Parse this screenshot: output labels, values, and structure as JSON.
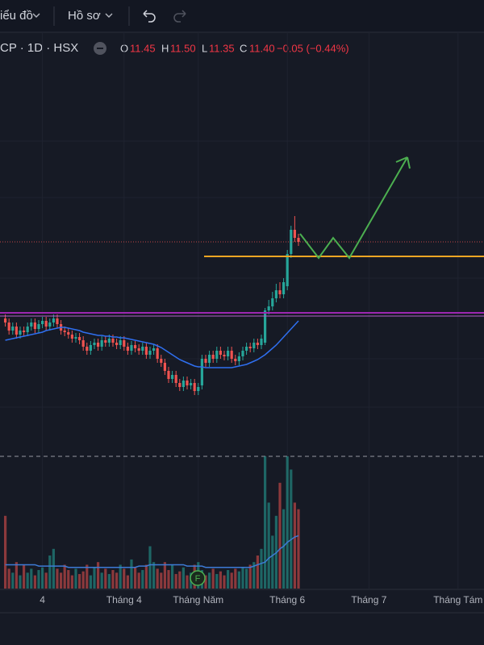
{
  "toolbar": {
    "chart_menu": "iểu đồ",
    "profile_menu": "Hồ sơ"
  },
  "legend": {
    "symbol": "CP · 1D · HSX",
    "o_label": "O",
    "o": "11.45",
    "h_label": "H",
    "h": "11.50",
    "l_label": "L",
    "l": "11.35",
    "c_label": "C",
    "c": "11.40",
    "change": "−0.05 (−0.44%)"
  },
  "event_marker": "F",
  "chart_data": {
    "type": "candlestick",
    "up_color": "#26a69a",
    "down_color": "#ef5350",
    "ma_color": "#2f6ff0",
    "volume_ma_color": "#3d7bd6",
    "xlim": [
      -1.43,
      129.0
    ],
    "ylim": [
      8.8,
      14.0
    ],
    "volume_ylim": [
      0,
      10
    ],
    "xticks": [
      {
        "value": 10,
        "label": "4"
      },
      {
        "value": 32,
        "label": "Tháng 4"
      },
      {
        "value": 52,
        "label": "Tháng Năm"
      },
      {
        "value": 76,
        "label": "Tháng 6"
      },
      {
        "value": 98,
        "label": "Tháng 7"
      },
      {
        "value": 122,
        "label": "Tháng Tám"
      }
    ],
    "x": [
      0,
      1,
      2,
      3,
      4,
      5,
      6,
      7,
      8,
      9,
      10,
      11,
      12,
      13,
      14,
      15,
      16,
      17,
      18,
      19,
      20,
      21,
      22,
      23,
      24,
      25,
      26,
      27,
      28,
      29,
      30,
      31,
      32,
      33,
      34,
      35,
      36,
      37,
      38,
      39,
      40,
      41,
      42,
      43,
      44,
      45,
      46,
      47,
      48,
      49,
      50,
      51,
      52,
      53,
      54,
      55,
      56,
      57,
      58,
      59,
      60,
      61,
      62,
      63,
      64,
      65,
      66,
      67,
      68,
      69,
      70,
      71,
      72,
      73,
      74,
      75,
      76,
      77,
      78,
      79
    ],
    "open": [
      10.45,
      10.4,
      10.3,
      10.35,
      10.25,
      10.3,
      10.28,
      10.35,
      10.4,
      10.32,
      10.38,
      10.42,
      10.35,
      10.4,
      10.45,
      10.38,
      10.3,
      10.28,
      10.25,
      10.2,
      10.22,
      10.18,
      10.1,
      10.05,
      10.12,
      10.15,
      10.1,
      10.18,
      10.15,
      10.2,
      10.15,
      10.12,
      10.18,
      10.1,
      10.05,
      10.12,
      10.08,
      10.05,
      10.1,
      10.0,
      10.05,
      10.08,
      9.95,
      9.9,
      9.8,
      9.7,
      9.75,
      9.65,
      9.6,
      9.68,
      9.62,
      9.65,
      9.55,
      9.62,
      9.95,
      9.9,
      10.0,
      9.95,
      10.05,
      10.0,
      9.98,
      10.05,
      9.95,
      9.92,
      9.98,
      10.05,
      10.1,
      10.08,
      10.15,
      10.12,
      10.15,
      10.55,
      10.6,
      10.7,
      10.8,
      10.75,
      10.85,
      11.25,
      11.55,
      11.45
    ],
    "high": [
      10.5,
      10.45,
      10.4,
      10.4,
      10.35,
      10.35,
      10.4,
      10.45,
      10.45,
      10.43,
      10.47,
      10.47,
      10.45,
      10.5,
      10.5,
      10.43,
      10.35,
      10.33,
      10.3,
      10.27,
      10.27,
      10.23,
      10.15,
      10.17,
      10.2,
      10.2,
      10.23,
      10.23,
      10.25,
      10.25,
      10.2,
      10.23,
      10.23,
      10.15,
      10.17,
      10.17,
      10.13,
      10.15,
      10.15,
      10.1,
      10.13,
      10.13,
      10.0,
      9.95,
      9.85,
      9.8,
      9.8,
      9.7,
      9.73,
      9.73,
      9.7,
      9.7,
      9.65,
      10.0,
      10.0,
      10.05,
      10.05,
      10.1,
      10.1,
      10.05,
      10.1,
      10.1,
      10.0,
      10.03,
      10.1,
      10.15,
      10.15,
      10.2,
      10.2,
      10.25,
      10.58,
      10.68,
      10.78,
      10.88,
      10.9,
      10.95,
      11.3,
      11.6,
      11.72,
      11.5
    ],
    "low": [
      10.35,
      10.25,
      10.25,
      10.2,
      10.2,
      10.23,
      10.23,
      10.3,
      10.27,
      10.27,
      10.33,
      10.3,
      10.3,
      10.35,
      10.33,
      10.25,
      10.23,
      10.2,
      10.15,
      10.15,
      10.13,
      10.05,
      10.0,
      10.0,
      10.07,
      10.05,
      10.05,
      10.1,
      10.1,
      10.1,
      10.07,
      10.07,
      10.05,
      10.0,
      10.0,
      10.03,
      10.0,
      10.0,
      9.95,
      9.95,
      10.0,
      9.9,
      9.85,
      9.75,
      9.65,
      9.65,
      9.6,
      9.55,
      9.55,
      9.57,
      9.57,
      9.5,
      9.5,
      9.57,
      9.85,
      9.85,
      9.9,
      9.9,
      9.95,
      9.93,
      9.93,
      9.9,
      9.87,
      9.87,
      9.93,
      10.0,
      10.03,
      10.03,
      10.07,
      10.07,
      10.12,
      10.5,
      10.55,
      10.65,
      10.7,
      10.7,
      10.8,
      11.2,
      11.4,
      11.35
    ],
    "close": [
      10.4,
      10.3,
      10.35,
      10.25,
      10.3,
      10.28,
      10.35,
      10.4,
      10.32,
      10.38,
      10.42,
      10.35,
      10.4,
      10.45,
      10.38,
      10.3,
      10.28,
      10.25,
      10.2,
      10.22,
      10.18,
      10.1,
      10.05,
      10.12,
      10.15,
      10.1,
      10.18,
      10.15,
      10.2,
      10.15,
      10.12,
      10.18,
      10.1,
      10.05,
      10.12,
      10.08,
      10.05,
      10.1,
      10.0,
      10.05,
      10.08,
      9.95,
      9.9,
      9.8,
      9.7,
      9.75,
      9.65,
      9.6,
      9.68,
      9.62,
      9.65,
      9.55,
      9.6,
      9.95,
      9.9,
      10.0,
      9.95,
      10.05,
      10.0,
      9.98,
      10.05,
      9.95,
      9.92,
      9.98,
      10.05,
      10.1,
      10.08,
      10.15,
      10.12,
      10.2,
      10.55,
      10.6,
      10.7,
      10.8,
      10.75,
      10.9,
      11.25,
      11.55,
      11.45,
      11.4
    ],
    "ma": [
      10.18,
      10.19,
      10.2,
      10.21,
      10.22,
      10.23,
      10.24,
      10.25,
      10.26,
      10.27,
      10.28,
      10.3,
      10.31,
      10.32,
      10.33,
      10.34,
      10.34,
      10.33,
      10.32,
      10.31,
      10.3,
      10.28,
      10.27,
      10.26,
      10.25,
      10.24,
      10.24,
      10.23,
      10.23,
      10.22,
      10.22,
      10.21,
      10.21,
      10.2,
      10.19,
      10.18,
      10.17,
      10.16,
      10.15,
      10.14,
      10.13,
      10.11,
      10.09,
      10.06,
      10.03,
      10.0,
      9.97,
      9.94,
      9.92,
      9.9,
      9.88,
      9.86,
      9.85,
      9.85,
      9.84,
      9.84,
      9.84,
      9.84,
      9.84,
      9.84,
      9.84,
      9.84,
      9.85,
      9.86,
      9.87,
      9.88,
      9.9,
      9.92,
      9.94,
      9.97,
      10.0,
      10.04,
      10.08,
      10.12,
      10.17,
      10.22,
      10.27,
      10.32,
      10.37,
      10.42
    ],
    "volume": [
      5.5,
      1.5,
      1.2,
      2.0,
      1.0,
      1.8,
      1.2,
      1.5,
      1.0,
      1.4,
      1.6,
      1.2,
      2.5,
      3.0,
      1.5,
      1.2,
      1.8,
      1.4,
      1.0,
      1.5,
      1.1,
      1.3,
      1.8,
      1.0,
      1.6,
      2.0,
      1.2,
      1.5,
      1.1,
      1.4,
      1.2,
      1.8,
      1.5,
      1.0,
      2.2,
      1.6,
      1.2,
      1.4,
      1.8,
      3.2,
      2.0,
      1.5,
      1.2,
      2.0,
      1.4,
      1.8,
      1.1,
      1.3,
      1.6,
      1.0,
      1.2,
      1.8,
      2.0,
      1.4,
      1.0,
      1.2,
      1.5,
      1.1,
      1.3,
      1.0,
      1.4,
      1.2,
      1.5,
      1.3,
      1.6,
      1.5,
      1.8,
      2.0,
      2.5,
      3.0,
      10.0,
      6.5,
      4.0,
      5.5,
      8.0,
      6.0,
      10.0,
      9.0,
      6.5,
      6.0
    ],
    "volume_ma": [
      1.8,
      1.8,
      1.8,
      1.8,
      1.8,
      1.8,
      1.8,
      1.8,
      1.8,
      1.7,
      1.7,
      1.7,
      1.7,
      1.7,
      1.7,
      1.7,
      1.7,
      1.6,
      1.6,
      1.6,
      1.6,
      1.6,
      1.6,
      1.6,
      1.6,
      1.6,
      1.6,
      1.6,
      1.6,
      1.6,
      1.6,
      1.6,
      1.6,
      1.6,
      1.6,
      1.6,
      1.7,
      1.7,
      1.7,
      1.8,
      1.8,
      1.8,
      1.8,
      1.8,
      1.8,
      1.8,
      1.8,
      1.8,
      1.8,
      1.7,
      1.7,
      1.7,
      1.7,
      1.7,
      1.6,
      1.6,
      1.6,
      1.6,
      1.6,
      1.6,
      1.6,
      1.6,
      1.6,
      1.6,
      1.6,
      1.6,
      1.6,
      1.7,
      1.8,
      1.9,
      2.0,
      2.3,
      2.5,
      2.7,
      3.0,
      3.2,
      3.5,
      3.7,
      3.9,
      4.0
    ]
  }
}
